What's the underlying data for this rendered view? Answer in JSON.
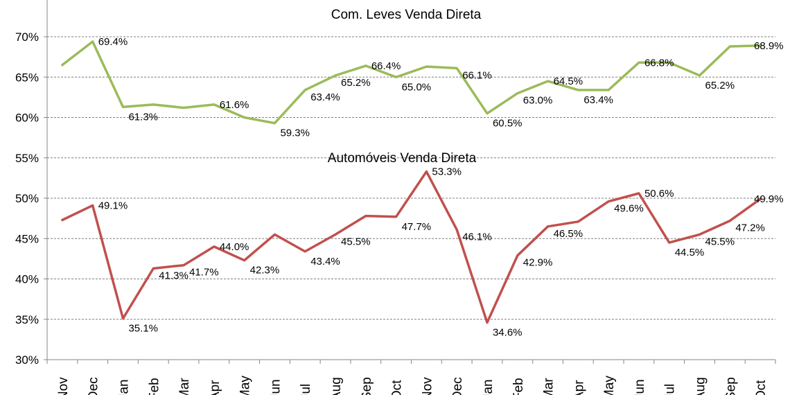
{
  "chart_data": {
    "type": "line",
    "categories": [
      "Nov",
      "Dec",
      "Jan",
      "Feb",
      "Mar",
      "Apr",
      "May",
      "Jun",
      "Jul",
      "Aug",
      "Sep",
      "Oct",
      "Nov",
      "Dec",
      "Jan",
      "Feb",
      "Mar",
      "Apr",
      "May",
      "Jun",
      "Jul",
      "Aug",
      "Sep",
      "Oct"
    ],
    "y_ticks": [
      "30%",
      "35%",
      "40%",
      "45%",
      "50%",
      "55%",
      "60%",
      "65%",
      "70%"
    ],
    "ylim": [
      30,
      72
    ],
    "grid": true,
    "series": [
      {
        "name": "Com. Leves Venda Direta",
        "color": "#9BBB59",
        "values": [
          66.5,
          69.4,
          61.3,
          61.6,
          61.2,
          61.6,
          60.0,
          59.3,
          63.4,
          65.2,
          66.4,
          65.0,
          66.3,
          66.1,
          60.5,
          63.0,
          64.5,
          63.4,
          63.4,
          66.8,
          66.8,
          65.2,
          68.8,
          68.9
        ],
        "labels": [
          "",
          "69.4%",
          "61.3%",
          "",
          "",
          "61.6%",
          "",
          "59.3%",
          "63.4%",
          "65.2%",
          "66.4%",
          "65.0%",
          "",
          "66.1%",
          "60.5%",
          "63.0%",
          "64.5%",
          "63.4%",
          "",
          "66.8%",
          "",
          "65.2%",
          "",
          "68.9%"
        ]
      },
      {
        "name": "Automóveis Venda Direta",
        "color": "#C0504D",
        "values": [
          47.3,
          49.1,
          35.1,
          41.3,
          41.7,
          44.0,
          42.3,
          45.5,
          43.4,
          45.5,
          47.8,
          47.7,
          53.3,
          46.1,
          34.6,
          42.9,
          46.5,
          47.1,
          49.6,
          50.6,
          44.5,
          45.5,
          47.2,
          49.9
        ],
        "labels": [
          "",
          "49.1%",
          "35.1%",
          "41.3%",
          "41.7%",
          "44.0%",
          "42.3%",
          "",
          "43.4%",
          "45.5%",
          "",
          "47.7%",
          "53.3%",
          "46.1%",
          "34.6%",
          "42.9%",
          "46.5%",
          "",
          "49.6%",
          "50.6%",
          "44.5%",
          "45.5%",
          "47.2%",
          "49.9%"
        ]
      }
    ]
  }
}
